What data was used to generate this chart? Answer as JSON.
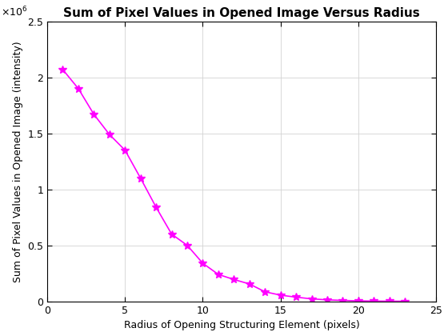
{
  "x": [
    1,
    2,
    3,
    4,
    5,
    6,
    7,
    8,
    9,
    10,
    11,
    12,
    13,
    14,
    15,
    16,
    17,
    18,
    19,
    20,
    21,
    22,
    23
  ],
  "y": [
    2070000.0,
    1900000.0,
    1670000.0,
    1490000.0,
    1350000.0,
    1100000.0,
    840000.0,
    600000.0,
    500000.0,
    340000.0,
    240000.0,
    195000.0,
    155000.0,
    85000.0,
    55000.0,
    37000.0,
    22000.0,
    13000.0,
    8000.0,
    4000.0,
    2000.0,
    1000.0,
    500.0
  ],
  "line_color": "#ff00ff",
  "marker": "*",
  "markersize": 7,
  "linewidth": 1.2,
  "title": "Sum of Pixel Values in Opened Image Versus Radius",
  "xlabel": "Radius of Opening Structuring Element (pixels)",
  "ylabel": "Sum of Pixel Values in Opened Image (intensity)",
  "xlim": [
    0,
    25
  ],
  "ylim": [
    0,
    2500000.0
  ],
  "xticks": [
    0,
    5,
    10,
    15,
    20,
    25
  ],
  "yticks": [
    0,
    500000.0,
    1000000.0,
    1500000.0,
    2000000.0,
    2500000.0
  ],
  "ytick_labels": [
    "0",
    "0.5",
    "1",
    "1.5",
    "2",
    "2.5"
  ],
  "grid": true,
  "title_fontsize": 11,
  "label_fontsize": 9,
  "tick_fontsize": 9,
  "exponent_label": "×10⁶",
  "background_color": "#ffffff"
}
